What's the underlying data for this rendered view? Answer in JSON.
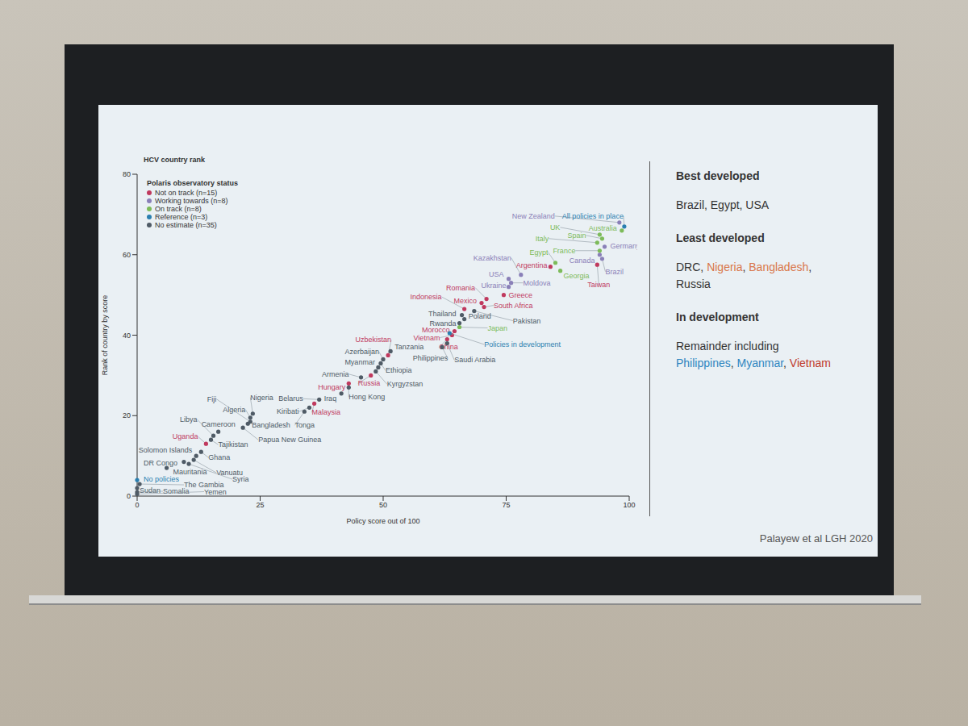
{
  "chart_data": {
    "type": "scatter",
    "title": "HCV country rank",
    "x_label": "Policy score out of 100",
    "y_label": "Rank of country by score",
    "xlim": [
      0,
      100
    ],
    "xticks": [
      0,
      25,
      50,
      75,
      100
    ],
    "ylim": [
      0,
      80
    ],
    "yticks": [
      0,
      20,
      40,
      60,
      80
    ],
    "grid": false,
    "legend": "upper left",
    "legend_title": "Polaris observatory status",
    "marker": "circle",
    "series": [
      {
        "name": "Not on track (n=15)",
        "color": "#c0395e",
        "x": [
          93.5,
          84,
          74.5,
          71,
          70,
          70.5,
          66.5,
          64.5,
          64,
          63,
          51,
          47.5,
          43,
          36,
          14
        ],
        "values": [
          57.5,
          57,
          50,
          49,
          48,
          47,
          46.5,
          41,
          40,
          39,
          35,
          30,
          28,
          23,
          13
        ],
        "labels": [
          "Taiwan",
          "Argentina",
          "Greece",
          "Romania",
          "Mexico",
          "South Africa",
          "Indonesia",
          "Morocco",
          "Vietnam",
          "China",
          "Uzbekistan",
          "Russia",
          "Hungary",
          "Malaysia",
          "Uganda"
        ]
      },
      {
        "name": "Working towards (n=8)",
        "color": "#8a80b8",
        "x": [
          98,
          95,
          94,
          94.5,
          75.5,
          78,
          75.5,
          76
        ],
        "values": [
          68,
          62,
          60,
          59,
          54,
          55,
          52,
          53
        ],
        "labels": [
          "New Zealand",
          "Germany",
          "Canada",
          "Brazil",
          "USA",
          "Kazakhstan",
          "Ukraine",
          "Moldova"
        ]
      },
      {
        "name": "On track (n=8)",
        "color": "#7dbb5a",
        "x": [
          94,
          94.5,
          93.5,
          94,
          85,
          86,
          65.5,
          98.5
        ],
        "values": [
          65,
          64,
          63,
          61,
          58,
          56,
          42,
          66
        ],
        "labels": [
          "UK",
          "Spain",
          "Italy",
          "France",
          "Egypt",
          "Georgia",
          "Japan",
          "Australia"
        ]
      },
      {
        "name": "Reference (n=3)",
        "color": "#2a7fb0",
        "x": [
          99,
          63.5,
          0
        ],
        "values": [
          67,
          40.5,
          4
        ],
        "labels": [
          "All policies in place",
          "Policies in development",
          "No policies"
        ]
      },
      {
        "name": "No estimate (n=35)",
        "color": "#4f5b66",
        "x": [
          68.5,
          66,
          66.5,
          65.5,
          63,
          62,
          51.5,
          50,
          49.5,
          49,
          48.5,
          45.5,
          43,
          41.5,
          37,
          35,
          34,
          23.5,
          23,
          23,
          22.5,
          21.5,
          16.5,
          15.5,
          15,
          13,
          12,
          11.5,
          10.5,
          9.5,
          6,
          0.5,
          0,
          0,
          0
        ],
        "values": [
          46,
          45,
          44,
          43,
          38,
          37,
          36,
          34,
          33,
          32,
          31,
          29.5,
          27,
          25.5,
          24,
          22,
          21,
          20.5,
          19.5,
          18.5,
          18,
          17,
          16,
          15,
          14,
          11,
          10,
          9,
          8,
          8.5,
          7,
          3,
          2,
          1,
          0.5
        ],
        "labels": [
          "Pakistan",
          "Thailand",
          "Poland",
          "Rwanda",
          "Saudi Arabia",
          "Philippines",
          "Tanzania",
          "Azerbaijan",
          "Ethiopia",
          "Myanmar",
          "Kyrgyzstan",
          "Armenia",
          "Hong Kong",
          "Iraq",
          "Belarus",
          "Kiribati",
          "Tonga",
          "Nigeria",
          "Algeria",
          "Fiji",
          "Bangladesh",
          "Papua New Guinea",
          "Cameroon",
          "Libya",
          "Tajikistan",
          "Ghana",
          "Solomon Islands",
          "Vanuatu",
          "Syria",
          "DR Congo",
          "Mauritania",
          "The Gambia",
          "Sudan",
          "Somalia",
          "Yemen"
        ]
      }
    ]
  },
  "panel": [
    {
      "heading": "Best developed",
      "lines": [
        [
          {
            "text": "Brazil, Egypt, USA"
          }
        ]
      ]
    },
    {
      "heading": "Least developed",
      "lines": [
        [
          {
            "text": "DRC, "
          },
          {
            "text": "Nigeria",
            "color": "#d9774b"
          },
          {
            "text": ", "
          },
          {
            "text": "Bangladesh",
            "color": "#d9774b"
          },
          {
            "text": ", Russia"
          }
        ]
      ]
    },
    {
      "heading": "In development",
      "lines": [
        [
          {
            "text": "Remainder including"
          }
        ],
        [
          {
            "text": "Philippines",
            "color": "#2e86c1"
          },
          {
            "text": ", "
          },
          {
            "text": "Myanmar",
            "color": "#2e86c1"
          },
          {
            "text": ", "
          },
          {
            "text": "Vietnam",
            "color": "#c0392b"
          }
        ]
      ]
    }
  ],
  "source": "Palayew et al LGH 2020"
}
